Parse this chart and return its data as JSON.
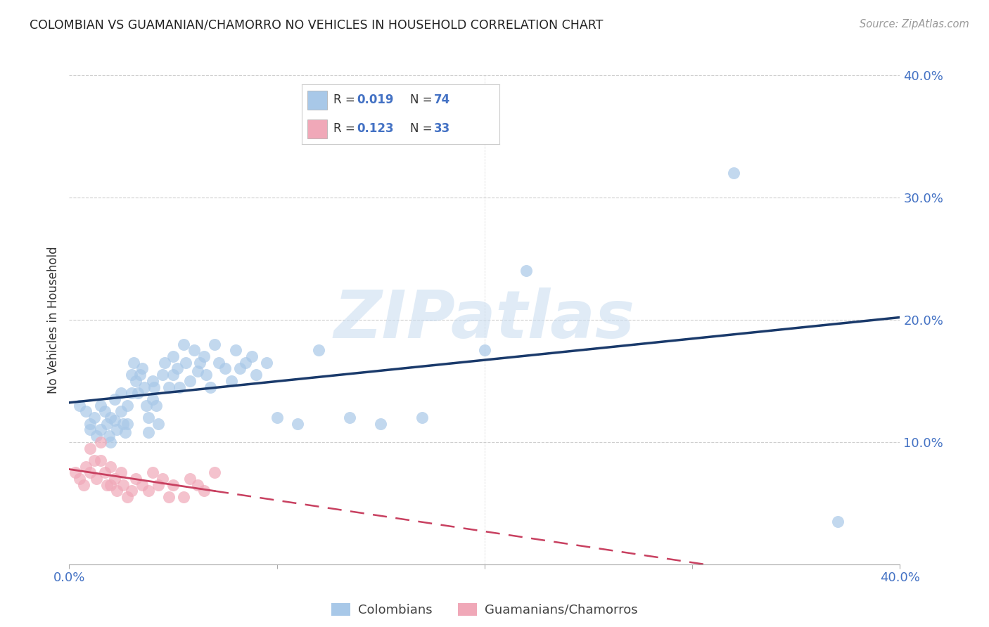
{
  "title": "COLOMBIAN VS GUAMANIAN/CHAMORRO NO VEHICLES IN HOUSEHOLD CORRELATION CHART",
  "source": "Source: ZipAtlas.com",
  "ylabel": "No Vehicles in Household",
  "watermark": "ZIPatlas",
  "legend_label1": "Colombians",
  "legend_label2": "Guamanians/Chamorros",
  "r1": "0.019",
  "n1": "74",
  "r2": "0.123",
  "n2": "33",
  "color_blue": "#A8C8E8",
  "color_pink": "#F0A8B8",
  "line_blue": "#1A3A6B",
  "line_pink": "#C84060",
  "axis_color": "#4472C4",
  "xlim": [
    0.0,
    0.4
  ],
  "ylim": [
    0.0,
    0.4
  ],
  "colombian_x": [
    0.005,
    0.008,
    0.01,
    0.01,
    0.012,
    0.013,
    0.015,
    0.015,
    0.017,
    0.018,
    0.019,
    0.02,
    0.02,
    0.022,
    0.022,
    0.023,
    0.025,
    0.025,
    0.026,
    0.027,
    0.028,
    0.028,
    0.03,
    0.03,
    0.031,
    0.032,
    0.033,
    0.034,
    0.035,
    0.036,
    0.037,
    0.038,
    0.038,
    0.04,
    0.04,
    0.041,
    0.042,
    0.043,
    0.045,
    0.046,
    0.048,
    0.05,
    0.05,
    0.052,
    0.053,
    0.055,
    0.056,
    0.058,
    0.06,
    0.062,
    0.063,
    0.065,
    0.066,
    0.068,
    0.07,
    0.072,
    0.075,
    0.078,
    0.08,
    0.082,
    0.085,
    0.088,
    0.09,
    0.095,
    0.1,
    0.11,
    0.12,
    0.135,
    0.15,
    0.17,
    0.2,
    0.22,
    0.32,
    0.37
  ],
  "colombian_y": [
    0.13,
    0.125,
    0.115,
    0.11,
    0.12,
    0.105,
    0.13,
    0.11,
    0.125,
    0.115,
    0.105,
    0.12,
    0.1,
    0.135,
    0.118,
    0.11,
    0.14,
    0.125,
    0.115,
    0.108,
    0.13,
    0.115,
    0.155,
    0.14,
    0.165,
    0.15,
    0.14,
    0.155,
    0.16,
    0.145,
    0.13,
    0.12,
    0.108,
    0.15,
    0.135,
    0.145,
    0.13,
    0.115,
    0.155,
    0.165,
    0.145,
    0.17,
    0.155,
    0.16,
    0.145,
    0.18,
    0.165,
    0.15,
    0.175,
    0.158,
    0.165,
    0.17,
    0.155,
    0.145,
    0.18,
    0.165,
    0.16,
    0.15,
    0.175,
    0.16,
    0.165,
    0.17,
    0.155,
    0.165,
    0.12,
    0.115,
    0.175,
    0.12,
    0.115,
    0.12,
    0.175,
    0.24,
    0.32,
    0.035
  ],
  "guamanian_x": [
    0.003,
    0.005,
    0.007,
    0.008,
    0.01,
    0.01,
    0.012,
    0.013,
    0.015,
    0.015,
    0.017,
    0.018,
    0.02,
    0.02,
    0.022,
    0.023,
    0.025,
    0.026,
    0.028,
    0.03,
    0.032,
    0.035,
    0.038,
    0.04,
    0.043,
    0.045,
    0.048,
    0.05,
    0.055,
    0.058,
    0.062,
    0.065,
    0.07
  ],
  "guamanian_y": [
    0.075,
    0.07,
    0.065,
    0.08,
    0.095,
    0.075,
    0.085,
    0.07,
    0.1,
    0.085,
    0.075,
    0.065,
    0.08,
    0.065,
    0.07,
    0.06,
    0.075,
    0.065,
    0.055,
    0.06,
    0.07,
    0.065,
    0.06,
    0.075,
    0.065,
    0.07,
    0.055,
    0.065,
    0.055,
    0.07,
    0.065,
    0.06,
    0.075
  ],
  "background_color": "#FFFFFF",
  "grid_color": "#BBBBBB"
}
